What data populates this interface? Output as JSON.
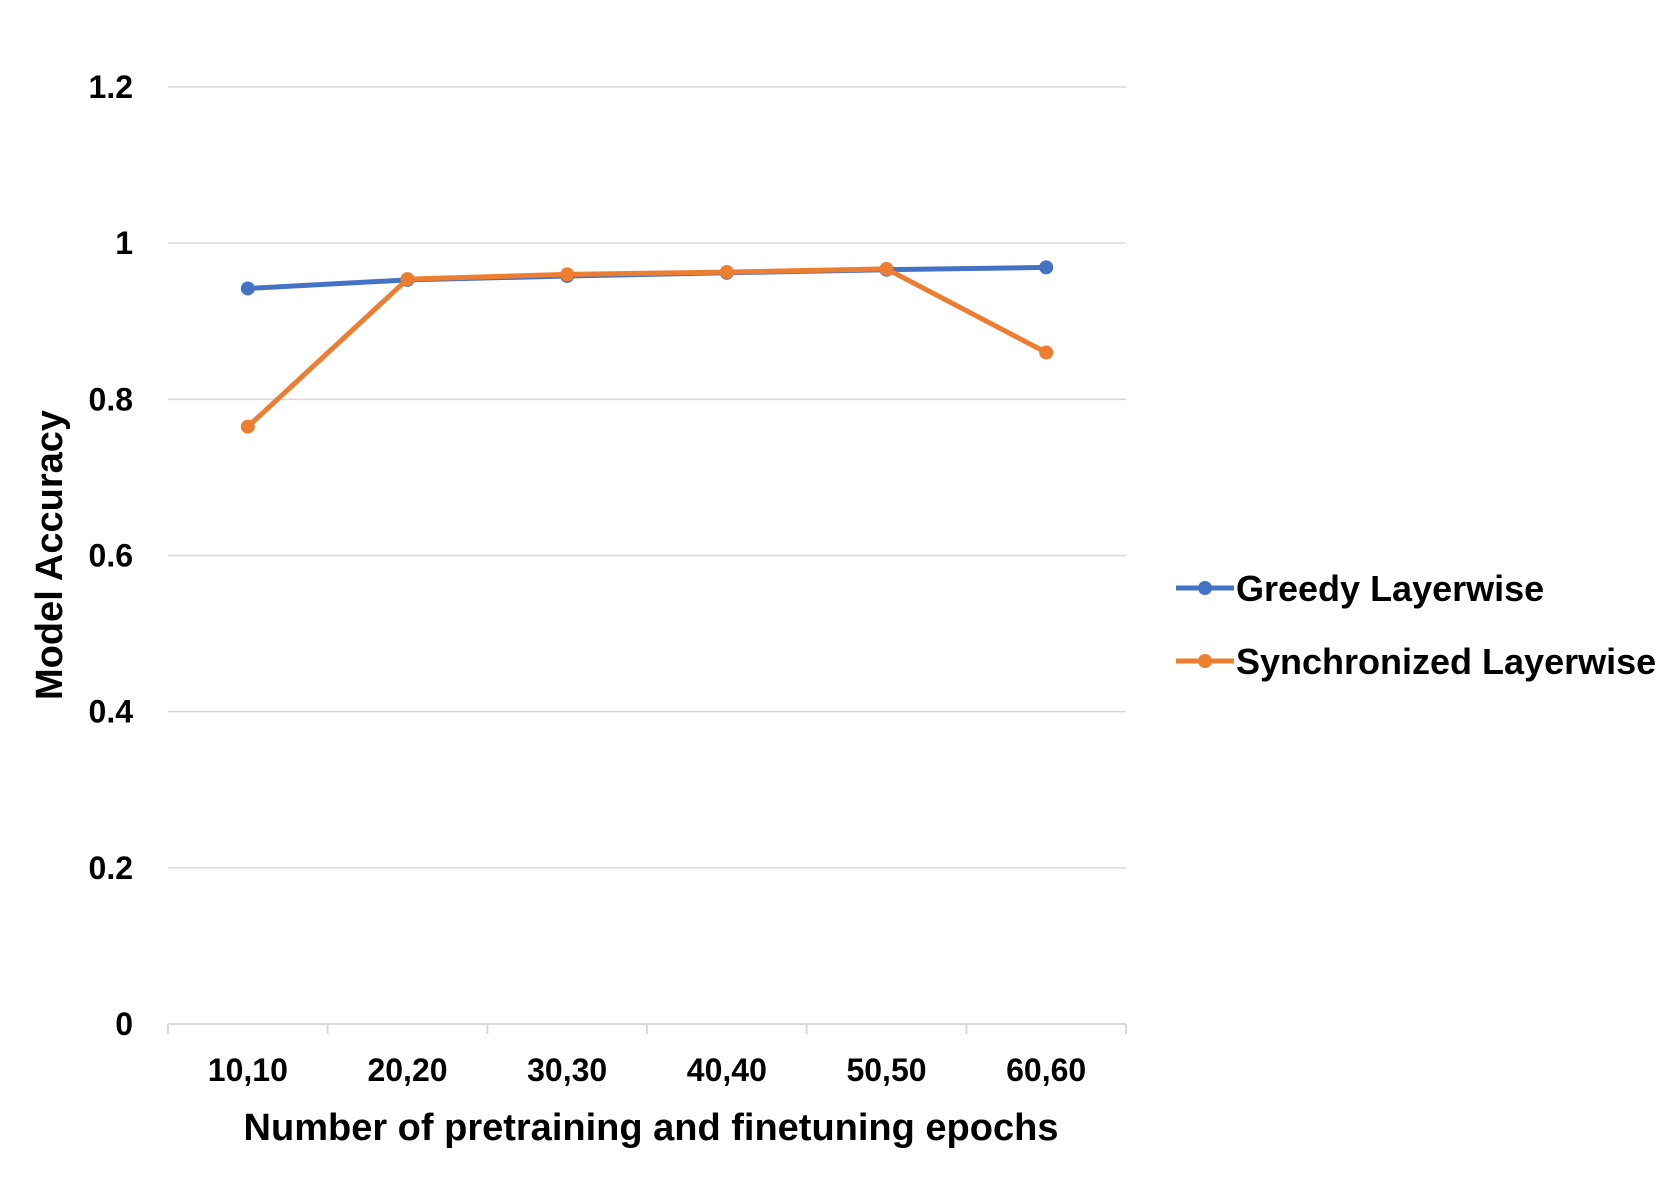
{
  "chart_data": {
    "type": "line",
    "title": "",
    "xlabel": "Number of pretraining and finetuning epochs",
    "ylabel": "Model Accuracy",
    "categories": [
      "10,10",
      "20,20",
      "30,30",
      "40,40",
      "50,50",
      "60,60"
    ],
    "ylim": [
      0,
      1.2
    ],
    "yticks": [
      "0",
      "0.2",
      "0.4",
      "0.6",
      "0.8",
      "1",
      "1.2"
    ],
    "grid": true,
    "legend_position": "right",
    "series": [
      {
        "name": "Greedy Layerwise",
        "color": "#4472C4",
        "values": [
          0.942,
          0.953,
          0.958,
          0.962,
          0.966,
          0.969
        ]
      },
      {
        "name": "Synchronized Layerwise",
        "color": "#ED7D31",
        "values": [
          0.765,
          0.954,
          0.96,
          0.963,
          0.967,
          0.86
        ]
      }
    ]
  }
}
